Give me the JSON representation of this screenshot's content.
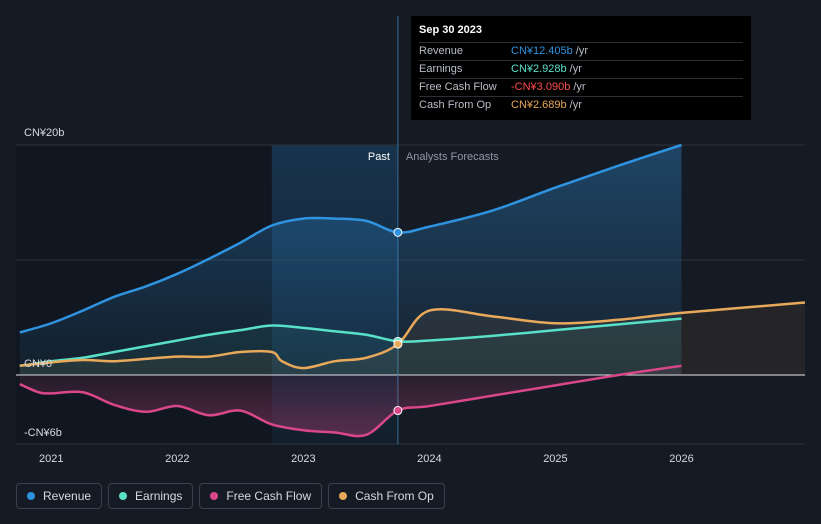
{
  "chart_data": {
    "type": "area",
    "y_unit_labels": {
      "top": "CN¥20b",
      "zero": "CN¥0",
      "bottom": "-CN¥6b"
    },
    "ylim": [
      -6,
      20
    ],
    "xlim": [
      2020.72,
      2026.98
    ],
    "x_ticks": [
      "2021",
      "2022",
      "2023",
      "2024",
      "2025",
      "2026"
    ],
    "past_label": "Past",
    "forecast_label": "Analysts Forecasts",
    "past_end": 2023.75,
    "highlight_start": 2022.75,
    "series": [
      {
        "name": "Revenue",
        "color": "#2f93e0",
        "x": [
          2020.75,
          2021.0,
          2021.25,
          2021.5,
          2021.75,
          2022.0,
          2022.25,
          2022.5,
          2022.75,
          2023.0,
          2023.25,
          2023.5,
          2023.75,
          2024.0,
          2024.5,
          2025.0,
          2025.5,
          2026.0
        ],
        "values": [
          3.7,
          4.5,
          5.6,
          6.8,
          7.7,
          8.8,
          10.1,
          11.5,
          13.0,
          13.6,
          13.6,
          13.4,
          12.405,
          12.9,
          14.3,
          16.3,
          18.2,
          20.0
        ]
      },
      {
        "name": "Earnings",
        "color": "#58e0c8",
        "x": [
          2020.75,
          2021.0,
          2021.25,
          2021.5,
          2021.75,
          2022.0,
          2022.25,
          2022.5,
          2022.75,
          2023.0,
          2023.25,
          2023.5,
          2023.75,
          2024.0,
          2024.5,
          2025.0,
          2025.5,
          2026.0
        ],
        "values": [
          0.8,
          1.2,
          1.5,
          2.0,
          2.5,
          3.0,
          3.5,
          3.9,
          4.3,
          4.1,
          3.8,
          3.5,
          2.928,
          3.0,
          3.4,
          3.9,
          4.4,
          4.9
        ]
      },
      {
        "name": "Free Cash Flow",
        "color": "#d9478a",
        "x": [
          2020.75,
          2020.9,
          2021.0,
          2021.25,
          2021.5,
          2021.75,
          2022.0,
          2022.25,
          2022.5,
          2022.75,
          2023.0,
          2023.25,
          2023.5,
          2023.75,
          2024.0,
          2024.5,
          2025.0,
          2025.5,
          2026.0
        ],
        "values": [
          -0.8,
          -1.5,
          -1.6,
          -1.5,
          -2.6,
          -3.2,
          -2.7,
          -3.5,
          -3.1,
          -4.3,
          -4.8,
          -5.0,
          -5.2,
          -3.09,
          -2.7,
          -1.8,
          -0.9,
          0.0,
          0.8
        ]
      },
      {
        "name": "Cash From Op",
        "color": "#e8a95a",
        "x": [
          2020.75,
          2021.0,
          2021.25,
          2021.5,
          2021.75,
          2022.0,
          2022.25,
          2022.5,
          2022.75,
          2022.83,
          2023.0,
          2023.25,
          2023.5,
          2023.75,
          2024.0,
          2024.5,
          2025.0,
          2025.5,
          2026.0,
          2026.98
        ],
        "values": [
          0.8,
          1.1,
          1.3,
          1.2,
          1.4,
          1.6,
          1.6,
          2.0,
          2.0,
          1.2,
          0.6,
          1.2,
          1.5,
          2.689,
          5.6,
          5.1,
          4.5,
          4.8,
          5.4,
          6.3
        ]
      }
    ]
  },
  "tooltip": {
    "date": "Sep 30 2023",
    "rows": [
      {
        "label": "Revenue",
        "value": "CN¥12.405b",
        "unit": "/yr",
        "color": "#2f93e0"
      },
      {
        "label": "Earnings",
        "value": "CN¥2.928b",
        "unit": "/yr",
        "color": "#58e0c8"
      },
      {
        "label": "Free Cash Flow",
        "value": "-CN¥3.090b",
        "unit": "/yr",
        "color": "#ff4d4d"
      },
      {
        "label": "Cash From Op",
        "value": "CN¥2.689b",
        "unit": "/yr",
        "color": "#e8a95a"
      }
    ]
  },
  "legend": [
    {
      "label": "Revenue",
      "color": "#2f93e0"
    },
    {
      "label": "Earnings",
      "color": "#58e0c8"
    },
    {
      "label": "Free Cash Flow",
      "color": "#d9478a"
    },
    {
      "label": "Cash From Op",
      "color": "#e8a95a"
    }
  ]
}
